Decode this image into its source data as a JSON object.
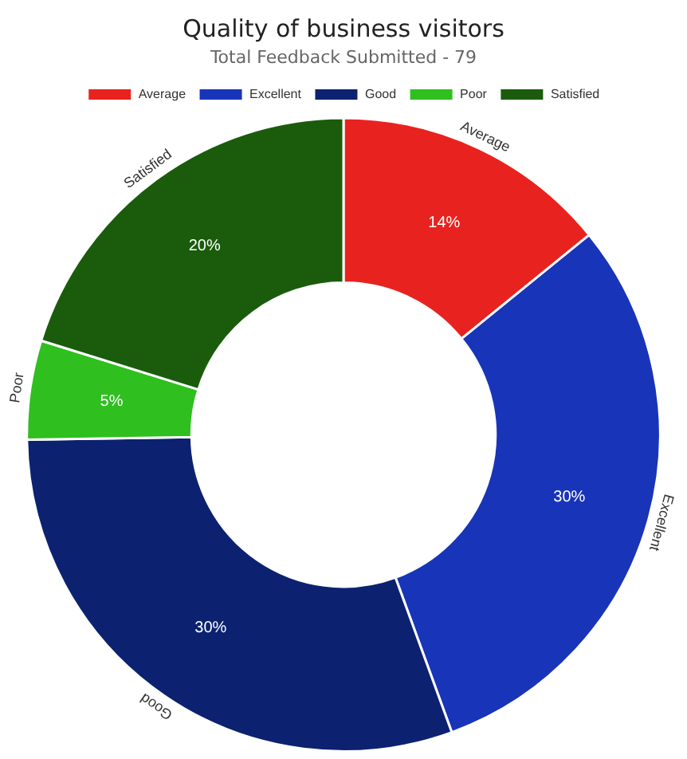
{
  "chart_data": {
    "type": "donut",
    "title": "Quality of business visitors",
    "subtitle": "Total Feedback Submitted - 79",
    "categories": [
      "Average",
      "Excellent",
      "Good",
      "Poor",
      "Satisfied"
    ],
    "values": [
      14,
      30,
      30,
      5,
      20
    ],
    "value_labels": [
      "14%",
      "30%",
      "30%",
      "5%",
      "20%"
    ],
    "colors": [
      "#e8231f",
      "#1834b8",
      "#0c2270",
      "#2fbf1f",
      "#1a5c0c"
    ],
    "legend": "top"
  }
}
